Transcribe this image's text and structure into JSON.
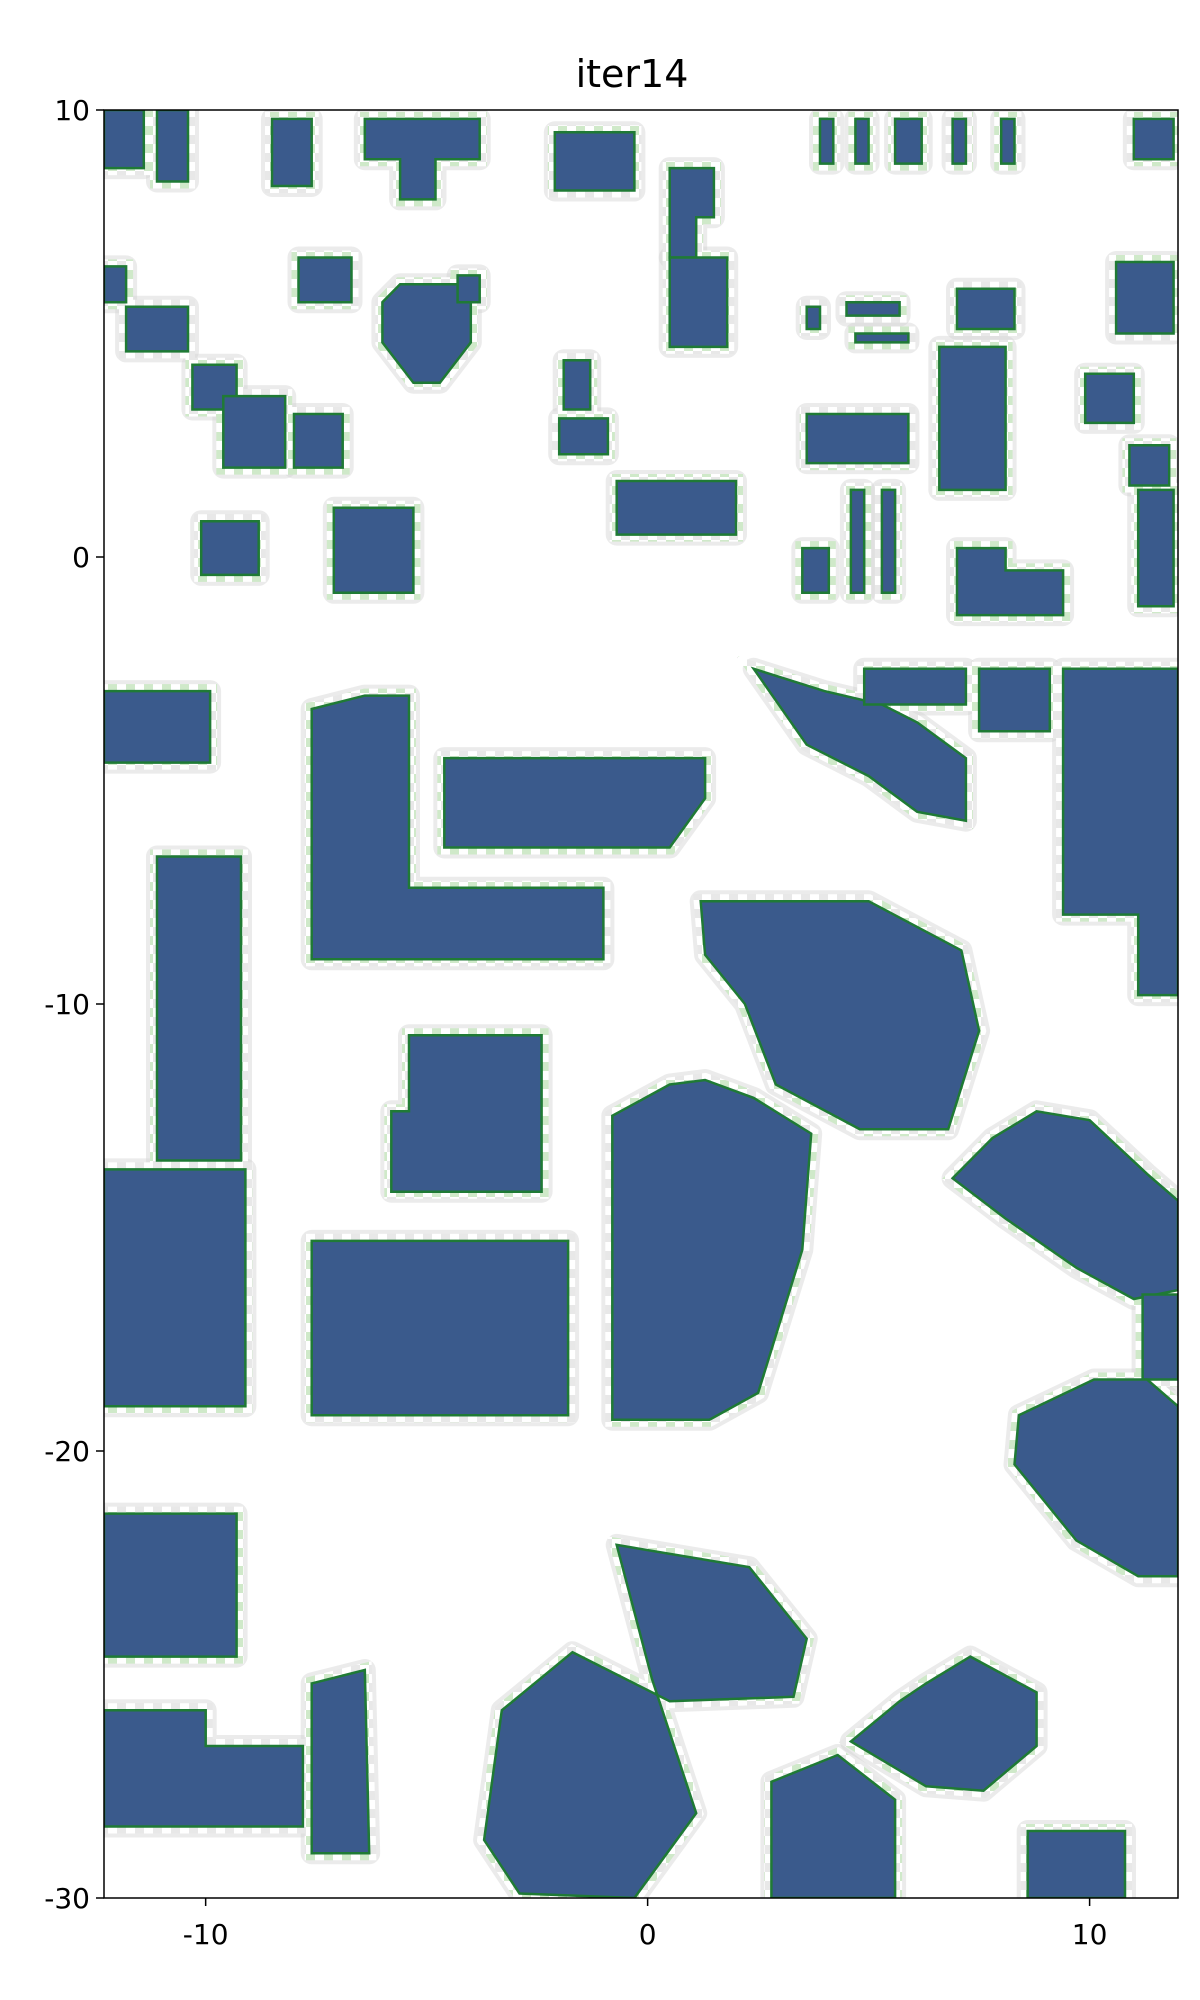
{
  "chart_data": {
    "type": "heatmap",
    "title": "iter14",
    "xlabel": "",
    "ylabel": "",
    "xlim": [
      -12.3,
      12.0
    ],
    "ylim": [
      -30,
      10
    ],
    "xticks": [
      -10,
      0,
      10
    ],
    "yticks": [
      10,
      0,
      -10,
      -20,
      -30
    ],
    "colors": {
      "building": "#3a5a8c",
      "vegetation_dark": "#1f7a35",
      "vegetation_light": "#a9d9a2",
      "uncertain_gray": "#d4d4d4",
      "obstacle_dark": "#222222",
      "free": "#ffffff"
    },
    "buildings": [
      [
        [
          -12.3,
          10
        ],
        [
          -11.4,
          10
        ],
        [
          -11.4,
          8.7
        ],
        [
          -12.3,
          8.7
        ]
      ],
      [
        [
          -11.1,
          10
        ],
        [
          -10.4,
          10
        ],
        [
          -10.4,
          8.4
        ],
        [
          -11.1,
          8.4
        ]
      ],
      [
        [
          -8.5,
          9.8
        ],
        [
          -7.6,
          9.8
        ],
        [
          -7.6,
          8.3
        ],
        [
          -8.5,
          8.3
        ]
      ],
      [
        [
          -6.4,
          9.8
        ],
        [
          -3.8,
          9.8
        ],
        [
          -3.8,
          8.9
        ],
        [
          -4.8,
          8.9
        ],
        [
          -4.8,
          8.0
        ],
        [
          -5.6,
          8.0
        ],
        [
          -5.6,
          8.9
        ],
        [
          -6.4,
          8.9
        ]
      ],
      [
        [
          -2.1,
          9.5
        ],
        [
          -0.3,
          9.5
        ],
        [
          -0.3,
          8.2
        ],
        [
          -2.1,
          8.2
        ]
      ],
      [
        [
          0.5,
          8.7
        ],
        [
          1.5,
          8.7
        ],
        [
          1.5,
          7.6
        ],
        [
          1.1,
          7.6
        ],
        [
          1.1,
          6.7
        ],
        [
          0.5,
          6.7
        ]
      ],
      [
        [
          3.9,
          9.8
        ],
        [
          4.2,
          9.8
        ],
        [
          4.2,
          8.8
        ],
        [
          3.9,
          8.8
        ]
      ],
      [
        [
          4.7,
          9.8
        ],
        [
          5.0,
          9.8
        ],
        [
          5.0,
          8.8
        ],
        [
          4.7,
          8.8
        ]
      ],
      [
        [
          5.6,
          9.8
        ],
        [
          6.2,
          9.8
        ],
        [
          6.2,
          8.8
        ],
        [
          5.6,
          8.8
        ]
      ],
      [
        [
          6.9,
          9.8
        ],
        [
          7.2,
          9.8
        ],
        [
          7.2,
          8.8
        ],
        [
          6.9,
          8.8
        ]
      ],
      [
        [
          8.0,
          9.8
        ],
        [
          8.3,
          9.8
        ],
        [
          8.3,
          8.8
        ],
        [
          8.0,
          8.8
        ]
      ],
      [
        [
          11.0,
          9.8
        ],
        [
          11.9,
          9.8
        ],
        [
          11.9,
          8.9
        ],
        [
          11.0,
          8.9
        ]
      ],
      [
        [
          -12.3,
          6.5
        ],
        [
          -11.8,
          6.5
        ],
        [
          -11.8,
          5.7
        ],
        [
          -12.3,
          5.7
        ]
      ],
      [
        [
          -11.8,
          5.6
        ],
        [
          -10.4,
          5.6
        ],
        [
          -10.4,
          4.6
        ],
        [
          -11.8,
          4.6
        ]
      ],
      [
        [
          -7.9,
          6.7
        ],
        [
          -6.7,
          6.7
        ],
        [
          -6.7,
          5.7
        ],
        [
          -7.9,
          5.7
        ]
      ],
      [
        [
          -5.6,
          6.1
        ],
        [
          -4.0,
          6.1
        ],
        [
          -4.0,
          4.8
        ],
        [
          -4.7,
          3.9
        ],
        [
          -5.3,
          3.9
        ],
        [
          -6.0,
          4.8
        ],
        [
          -6.0,
          5.7
        ]
      ],
      [
        [
          -4.3,
          6.3
        ],
        [
          -3.8,
          6.3
        ],
        [
          -3.8,
          5.7
        ],
        [
          -4.3,
          5.7
        ]
      ],
      [
        [
          -10.3,
          4.3
        ],
        [
          -9.3,
          4.3
        ],
        [
          -9.3,
          3.3
        ],
        [
          -10.3,
          3.3
        ]
      ],
      [
        [
          -9.6,
          3.6
        ],
        [
          -8.2,
          3.6
        ],
        [
          -8.2,
          2.0
        ],
        [
          -9.6,
          2.0
        ]
      ],
      [
        [
          -8.0,
          3.2
        ],
        [
          -6.9,
          3.2
        ],
        [
          -6.9,
          2.0
        ],
        [
          -8.0,
          2.0
        ]
      ],
      [
        [
          0.5,
          6.7
        ],
        [
          1.8,
          6.7
        ],
        [
          1.8,
          4.7
        ],
        [
          0.5,
          4.7
        ]
      ],
      [
        [
          3.6,
          5.6
        ],
        [
          3.9,
          5.6
        ],
        [
          3.9,
          5.1
        ],
        [
          3.6,
          5.1
        ]
      ],
      [
        [
          4.5,
          5.7
        ],
        [
          5.7,
          5.7
        ],
        [
          5.7,
          5.4
        ],
        [
          4.5,
          5.4
        ]
      ],
      [
        [
          4.7,
          5.0
        ],
        [
          5.9,
          5.0
        ],
        [
          5.9,
          4.8
        ],
        [
          4.7,
          4.8
        ]
      ],
      [
        [
          7.0,
          6.0
        ],
        [
          8.3,
          6.0
        ],
        [
          8.3,
          5.1
        ],
        [
          7.0,
          5.1
        ]
      ],
      [
        [
          6.6,
          4.7
        ],
        [
          8.1,
          4.7
        ],
        [
          8.1,
          1.5
        ],
        [
          6.6,
          1.5
        ]
      ],
      [
        [
          10.6,
          6.6
        ],
        [
          11.9,
          6.6
        ],
        [
          11.9,
          5.0
        ],
        [
          10.6,
          5.0
        ]
      ],
      [
        [
          9.9,
          4.1
        ],
        [
          11.0,
          4.1
        ],
        [
          11.0,
          3.0
        ],
        [
          9.9,
          3.0
        ]
      ],
      [
        [
          10.9,
          2.5
        ],
        [
          11.8,
          2.5
        ],
        [
          11.8,
          1.6
        ],
        [
          10.9,
          1.6
        ]
      ],
      [
        [
          11.1,
          1.5
        ],
        [
          11.9,
          1.5
        ],
        [
          11.9,
          -1.1
        ],
        [
          11.1,
          -1.1
        ]
      ],
      [
        [
          -1.9,
          4.4
        ],
        [
          -1.3,
          4.4
        ],
        [
          -1.3,
          3.3
        ],
        [
          -1.9,
          3.3
        ]
      ],
      [
        [
          -2.0,
          3.1
        ],
        [
          -0.9,
          3.1
        ],
        [
          -0.9,
          2.3
        ],
        [
          -2.0,
          2.3
        ]
      ],
      [
        [
          3.6,
          3.2
        ],
        [
          5.9,
          3.2
        ],
        [
          5.9,
          2.1
        ],
        [
          3.6,
          2.1
        ]
      ],
      [
        [
          -0.7,
          1.7
        ],
        [
          2.0,
          1.7
        ],
        [
          2.0,
          0.5
        ],
        [
          -0.7,
          0.5
        ]
      ],
      [
        [
          -10.1,
          0.8
        ],
        [
          -8.8,
          0.8
        ],
        [
          -8.8,
          -0.4
        ],
        [
          -10.1,
          -0.4
        ]
      ],
      [
        [
          -7.1,
          1.1
        ],
        [
          -5.3,
          1.1
        ],
        [
          -5.3,
          -0.8
        ],
        [
          -7.1,
          -0.8
        ]
      ],
      [
        [
          3.5,
          0.2
        ],
        [
          4.1,
          0.2
        ],
        [
          4.1,
          -0.8
        ],
        [
          3.5,
          -0.8
        ]
      ],
      [
        [
          4.6,
          1.5
        ],
        [
          4.9,
          1.5
        ],
        [
          4.9,
          -0.8
        ],
        [
          4.6,
          -0.8
        ]
      ],
      [
        [
          5.3,
          1.5
        ],
        [
          5.6,
          1.5
        ],
        [
          5.6,
          -0.8
        ],
        [
          5.3,
          -0.8
        ]
      ],
      [
        [
          7.0,
          0.2
        ],
        [
          8.1,
          0.2
        ],
        [
          8.1,
          -0.3
        ],
        [
          9.4,
          -0.3
        ],
        [
          9.4,
          -1.3
        ],
        [
          7.0,
          -1.3
        ]
      ],
      [
        [
          -12.3,
          -3.0
        ],
        [
          -9.9,
          -3.0
        ],
        [
          -9.9,
          -4.6
        ],
        [
          -12.3,
          -4.6
        ]
      ],
      [
        [
          -7.6,
          -3.4
        ],
        [
          -6.4,
          -3.1
        ],
        [
          -5.4,
          -3.1
        ],
        [
          -5.4,
          -7.4
        ],
        [
          -1.0,
          -7.4
        ],
        [
          -1.0,
          -9.0
        ],
        [
          -7.6,
          -9.0
        ]
      ],
      [
        [
          -4.6,
          -4.5
        ],
        [
          1.3,
          -4.5
        ],
        [
          1.3,
          -5.4
        ],
        [
          0.5,
          -6.5
        ],
        [
          -4.6,
          -6.5
        ]
      ],
      [
        [
          2.4,
          -2.5
        ],
        [
          4.0,
          -3.0
        ],
        [
          5.3,
          -3.3
        ],
        [
          6.1,
          -3.7
        ],
        [
          7.2,
          -4.5
        ],
        [
          7.2,
          -5.9
        ],
        [
          6.1,
          -5.7
        ],
        [
          5.0,
          -4.9
        ],
        [
          3.6,
          -4.2
        ]
      ],
      [
        [
          4.9,
          -2.5
        ],
        [
          7.2,
          -2.5
        ],
        [
          7.2,
          -3.3
        ],
        [
          4.9,
          -3.3
        ]
      ],
      [
        [
          7.5,
          -2.5
        ],
        [
          9.1,
          -2.5
        ],
        [
          9.1,
          -3.9
        ],
        [
          7.5,
          -3.9
        ]
      ],
      [
        [
          9.4,
          -2.5
        ],
        [
          12.0,
          -2.5
        ],
        [
          12.0,
          -9.8
        ],
        [
          11.1,
          -9.8
        ],
        [
          11.1,
          -8.0
        ],
        [
          9.4,
          -8.0
        ]
      ],
      [
        [
          -11.1,
          -6.7
        ],
        [
          -9.2,
          -6.7
        ],
        [
          -9.2,
          -13.5
        ],
        [
          -11.1,
          -13.5
        ]
      ],
      [
        [
          1.2,
          -7.7
        ],
        [
          3.0,
          -7.7
        ],
        [
          5.0,
          -7.7
        ],
        [
          7.1,
          -8.8
        ],
        [
          7.5,
          -10.6
        ],
        [
          6.8,
          -12.8
        ],
        [
          4.8,
          -12.8
        ],
        [
          2.9,
          -11.8
        ],
        [
          2.2,
          -10.0
        ],
        [
          1.3,
          -8.9
        ]
      ],
      [
        [
          -5.4,
          -10.7
        ],
        [
          -2.4,
          -10.7
        ],
        [
          -2.4,
          -14.2
        ],
        [
          -5.8,
          -14.2
        ],
        [
          -5.8,
          -12.4
        ],
        [
          -5.4,
          -12.4
        ]
      ],
      [
        [
          0.5,
          -11.8
        ],
        [
          1.3,
          -11.7
        ],
        [
          2.4,
          -12.1
        ],
        [
          3.7,
          -12.9
        ],
        [
          3.5,
          -15.5
        ],
        [
          2.5,
          -18.7
        ],
        [
          1.4,
          -19.3
        ],
        [
          -0.8,
          -19.3
        ],
        [
          -0.8,
          -12.5
        ]
      ],
      [
        [
          7.8,
          -13.0
        ],
        [
          8.8,
          -12.4
        ],
        [
          10.0,
          -12.6
        ],
        [
          11.3,
          -13.8
        ],
        [
          12.0,
          -14.4
        ],
        [
          12.0,
          -16.4
        ],
        [
          11.0,
          -16.6
        ],
        [
          9.7,
          -15.9
        ],
        [
          8.1,
          -14.8
        ],
        [
          6.9,
          -13.9
        ]
      ],
      [
        [
          -12.3,
          -13.7
        ],
        [
          -9.1,
          -13.7
        ],
        [
          -9.1,
          -19.0
        ],
        [
          -12.3,
          -19.0
        ]
      ],
      [
        [
          -7.6,
          -15.3
        ],
        [
          -1.8,
          -15.3
        ],
        [
          -1.8,
          -19.2
        ],
        [
          -7.6,
          -19.2
        ]
      ],
      [
        [
          11.2,
          -16.5
        ],
        [
          12.0,
          -16.5
        ],
        [
          12.0,
          -18.4
        ],
        [
          11.2,
          -18.4
        ]
      ],
      [
        [
          10.1,
          -18.4
        ],
        [
          11.3,
          -18.4
        ],
        [
          12.0,
          -19.0
        ],
        [
          12.0,
          -22.8
        ],
        [
          11.1,
          -22.8
        ],
        [
          9.7,
          -22.0
        ],
        [
          8.3,
          -20.3
        ],
        [
          8.4,
          -19.2
        ]
      ],
      [
        [
          -12.3,
          -21.4
        ],
        [
          -9.3,
          -21.4
        ],
        [
          -9.3,
          -24.6
        ],
        [
          -12.3,
          -24.6
        ]
      ],
      [
        [
          -12.3,
          -25.8
        ],
        [
          -10.0,
          -25.8
        ],
        [
          -10.0,
          -26.6
        ],
        [
          -7.8,
          -26.6
        ],
        [
          -7.8,
          -28.4
        ],
        [
          -12.3,
          -28.4
        ]
      ],
      [
        [
          -7.6,
          -25.2
        ],
        [
          -6.4,
          -24.9
        ],
        [
          -6.3,
          -29.0
        ],
        [
          -7.6,
          -29.0
        ]
      ],
      [
        [
          -0.7,
          -22.1
        ],
        [
          2.3,
          -22.6
        ],
        [
          3.6,
          -24.2
        ],
        [
          3.3,
          -25.5
        ],
        [
          0.5,
          -25.6
        ],
        [
          -1.7,
          -24.5
        ],
        [
          -3.3,
          -25.8
        ],
        [
          -3.7,
          -28.7
        ],
        [
          -2.9,
          -29.9
        ],
        [
          -0.3,
          -30
        ],
        [
          1.1,
          -28.1
        ],
        [
          0.1,
          -25.1
        ]
      ],
      [
        [
          2.8,
          -27.4
        ],
        [
          4.3,
          -26.8
        ],
        [
          5.6,
          -27.8
        ],
        [
          5.6,
          -30
        ],
        [
          2.8,
          -30
        ]
      ],
      [
        [
          6.3,
          -25.2
        ],
        [
          7.3,
          -24.6
        ],
        [
          8.8,
          -25.4
        ],
        [
          8.8,
          -26.6
        ],
        [
          7.6,
          -27.6
        ],
        [
          6.3,
          -27.5
        ],
        [
          4.6,
          -26.5
        ],
        [
          5.7,
          -25.6
        ]
      ],
      [
        [
          8.6,
          -28.5
        ],
        [
          10.8,
          -28.5
        ],
        [
          10.8,
          -30
        ],
        [
          8.6,
          -30
        ]
      ]
    ]
  }
}
